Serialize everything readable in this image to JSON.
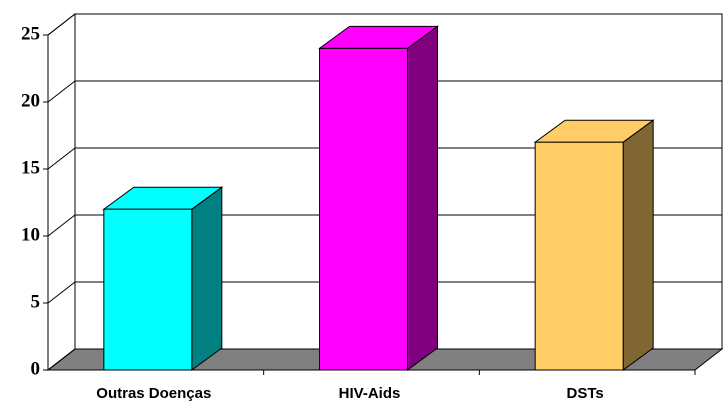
{
  "chart_data": {
    "type": "bar3d",
    "categories": [
      "Outras Doenças",
      "HIV-Aids",
      "DSTs"
    ],
    "values": [
      12,
      24,
      17
    ],
    "colors": [
      "#00ffff",
      "#ff00ff",
      "#ffcc66"
    ],
    "side_colors": [
      "#008080",
      "#800080",
      "#806633"
    ],
    "ylim": [
      0,
      25
    ],
    "yticks": [
      0,
      5,
      10,
      15,
      20,
      25
    ],
    "grid": true
  }
}
